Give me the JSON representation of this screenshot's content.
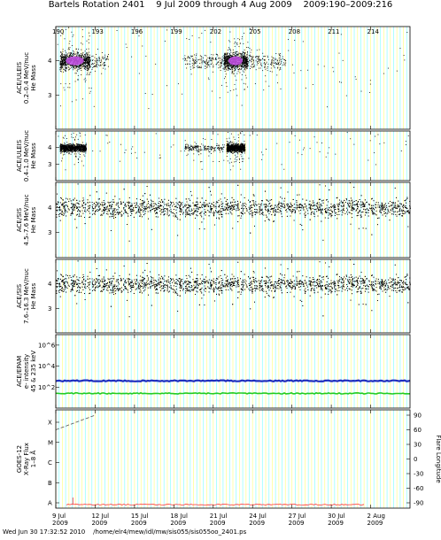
{
  "header": {
    "title": "Bartels Rotation 2401    9 Jul 2009 through 4 Aug 2009    2009:190–2009:216"
  },
  "footer": {
    "text": "Wed Jun 30 17:32:52 2010    /home/elr4/mew/idl/mw/sis055/sis055oo_2401.ps"
  },
  "chart_data": {
    "type": "scatter",
    "top_axis": {
      "ticks": [
        190,
        193,
        196,
        199,
        202,
        205,
        208,
        211,
        214
      ],
      "tick_labels": [
        "190",
        "193",
        "196",
        "199",
        "202",
        "205",
        "208",
        "211",
        "214"
      ]
    },
    "x_axis": {
      "range_days": [
        190,
        217
      ],
      "tick_days": [
        190,
        193,
        196,
        199,
        202,
        205,
        208,
        211,
        214
      ],
      "tick_labels_line1": [
        "9 Jul",
        "12 Jul",
        "15 Jul",
        "18 Jul",
        "21 Jul",
        "24 Jul",
        "27 Jul",
        "30 Jul",
        "2 Aug"
      ],
      "tick_labels_line2": [
        "2009",
        "2009",
        "2009",
        "2009",
        "2009",
        "2009",
        "2009",
        "2009",
        "2009"
      ]
    },
    "colors": {
      "grid_yellow": "#ffff99",
      "grid_cyan": "#99ffff",
      "points": "#000000",
      "density_high": "#cc55ee",
      "electrons_45": "#1f2fbf",
      "electrons_235": "#22cc22",
      "xray_long": "#ff3333",
      "flare_longitude": "#555555"
    },
    "panels": [
      {
        "ylabel": [
          "ACE/ULEIS",
          "0.2–0.4 MeV/nuc",
          "He Mass"
        ],
        "ylim": [
          2,
          5
        ],
        "yticks": [
          3,
          4
        ],
        "clusters": [
          {
            "day_from": 190.3,
            "day_to": 192.6,
            "mass": 4.0,
            "dense": true
          },
          {
            "day_from": 192.6,
            "day_to": 194.0,
            "mass": 4.0,
            "dense": false
          },
          {
            "day_from": 199.8,
            "day_to": 202.8,
            "mass": 4.0,
            "dense": false
          },
          {
            "day_from": 202.8,
            "day_to": 204.6,
            "mass": 4.0,
            "dense": true
          },
          {
            "day_from": 204.6,
            "day_to": 207.5,
            "mass": 4.0,
            "dense": false
          }
        ]
      },
      {
        "ylabel": [
          "ACE/ULEIS",
          "0.4–1.0 MeV/nuc",
          "He Mass"
        ],
        "ylim": [
          2,
          5
        ],
        "yticks": [
          3,
          4
        ],
        "clusters": [
          {
            "day_from": 190.3,
            "day_to": 192.3,
            "mass": 4.0,
            "dense": true
          },
          {
            "day_from": 199.8,
            "day_to": 202.8,
            "mass": 4.0,
            "dense": false
          },
          {
            "day_from": 203.0,
            "day_to": 204.4,
            "mass": 4.0,
            "dense": true
          }
        ]
      },
      {
        "ylabel": [
          "ACE/SIS",
          "4.5–7.6 MeV/nuc",
          "He Mass"
        ],
        "ylim": [
          2,
          5
        ],
        "yticks": [
          3,
          4
        ],
        "clusters": [
          {
            "day_from": 190.0,
            "day_to": 217.0,
            "mass": 4.0,
            "dense": false
          }
        ]
      },
      {
        "ylabel": [
          "ACE/SIS",
          "7.6–16.3 MeV/nuc",
          "He Mass"
        ],
        "ylim": [
          2,
          5
        ],
        "yticks": [
          3,
          4
        ],
        "clusters": [
          {
            "day_from": 190.0,
            "day_to": 217.0,
            "mass": 4.0,
            "dense": false
          }
        ]
      },
      {
        "ylabel": [
          "ACE/EPAM",
          "e- intensity",
          "45 & 235 keV"
        ],
        "ylim_log10": [
          0,
          7
        ],
        "ytick_labels": [
          "10^6",
          "10^4",
          "10^2"
        ],
        "ytick_log10": [
          6,
          4,
          2
        ],
        "series": [
          {
            "name": "45 keV",
            "log10_value": 2.6
          },
          {
            "name": "235 keV",
            "log10_value": 1.4
          }
        ]
      },
      {
        "ylabel": [
          "GOES-12",
          "X-Ray Flux",
          "1–8 Å"
        ],
        "ylabel_right": "Flare Longitude",
        "class_labels": [
          "X",
          "M",
          "C",
          "B",
          "A"
        ],
        "right_ticks": [
          90,
          60,
          30,
          0,
          -30,
          -60,
          -90
        ],
        "xray_class_index": 0.1,
        "flare_longitude_start": 60,
        "flare_longitude_end": 90
      }
    ]
  }
}
